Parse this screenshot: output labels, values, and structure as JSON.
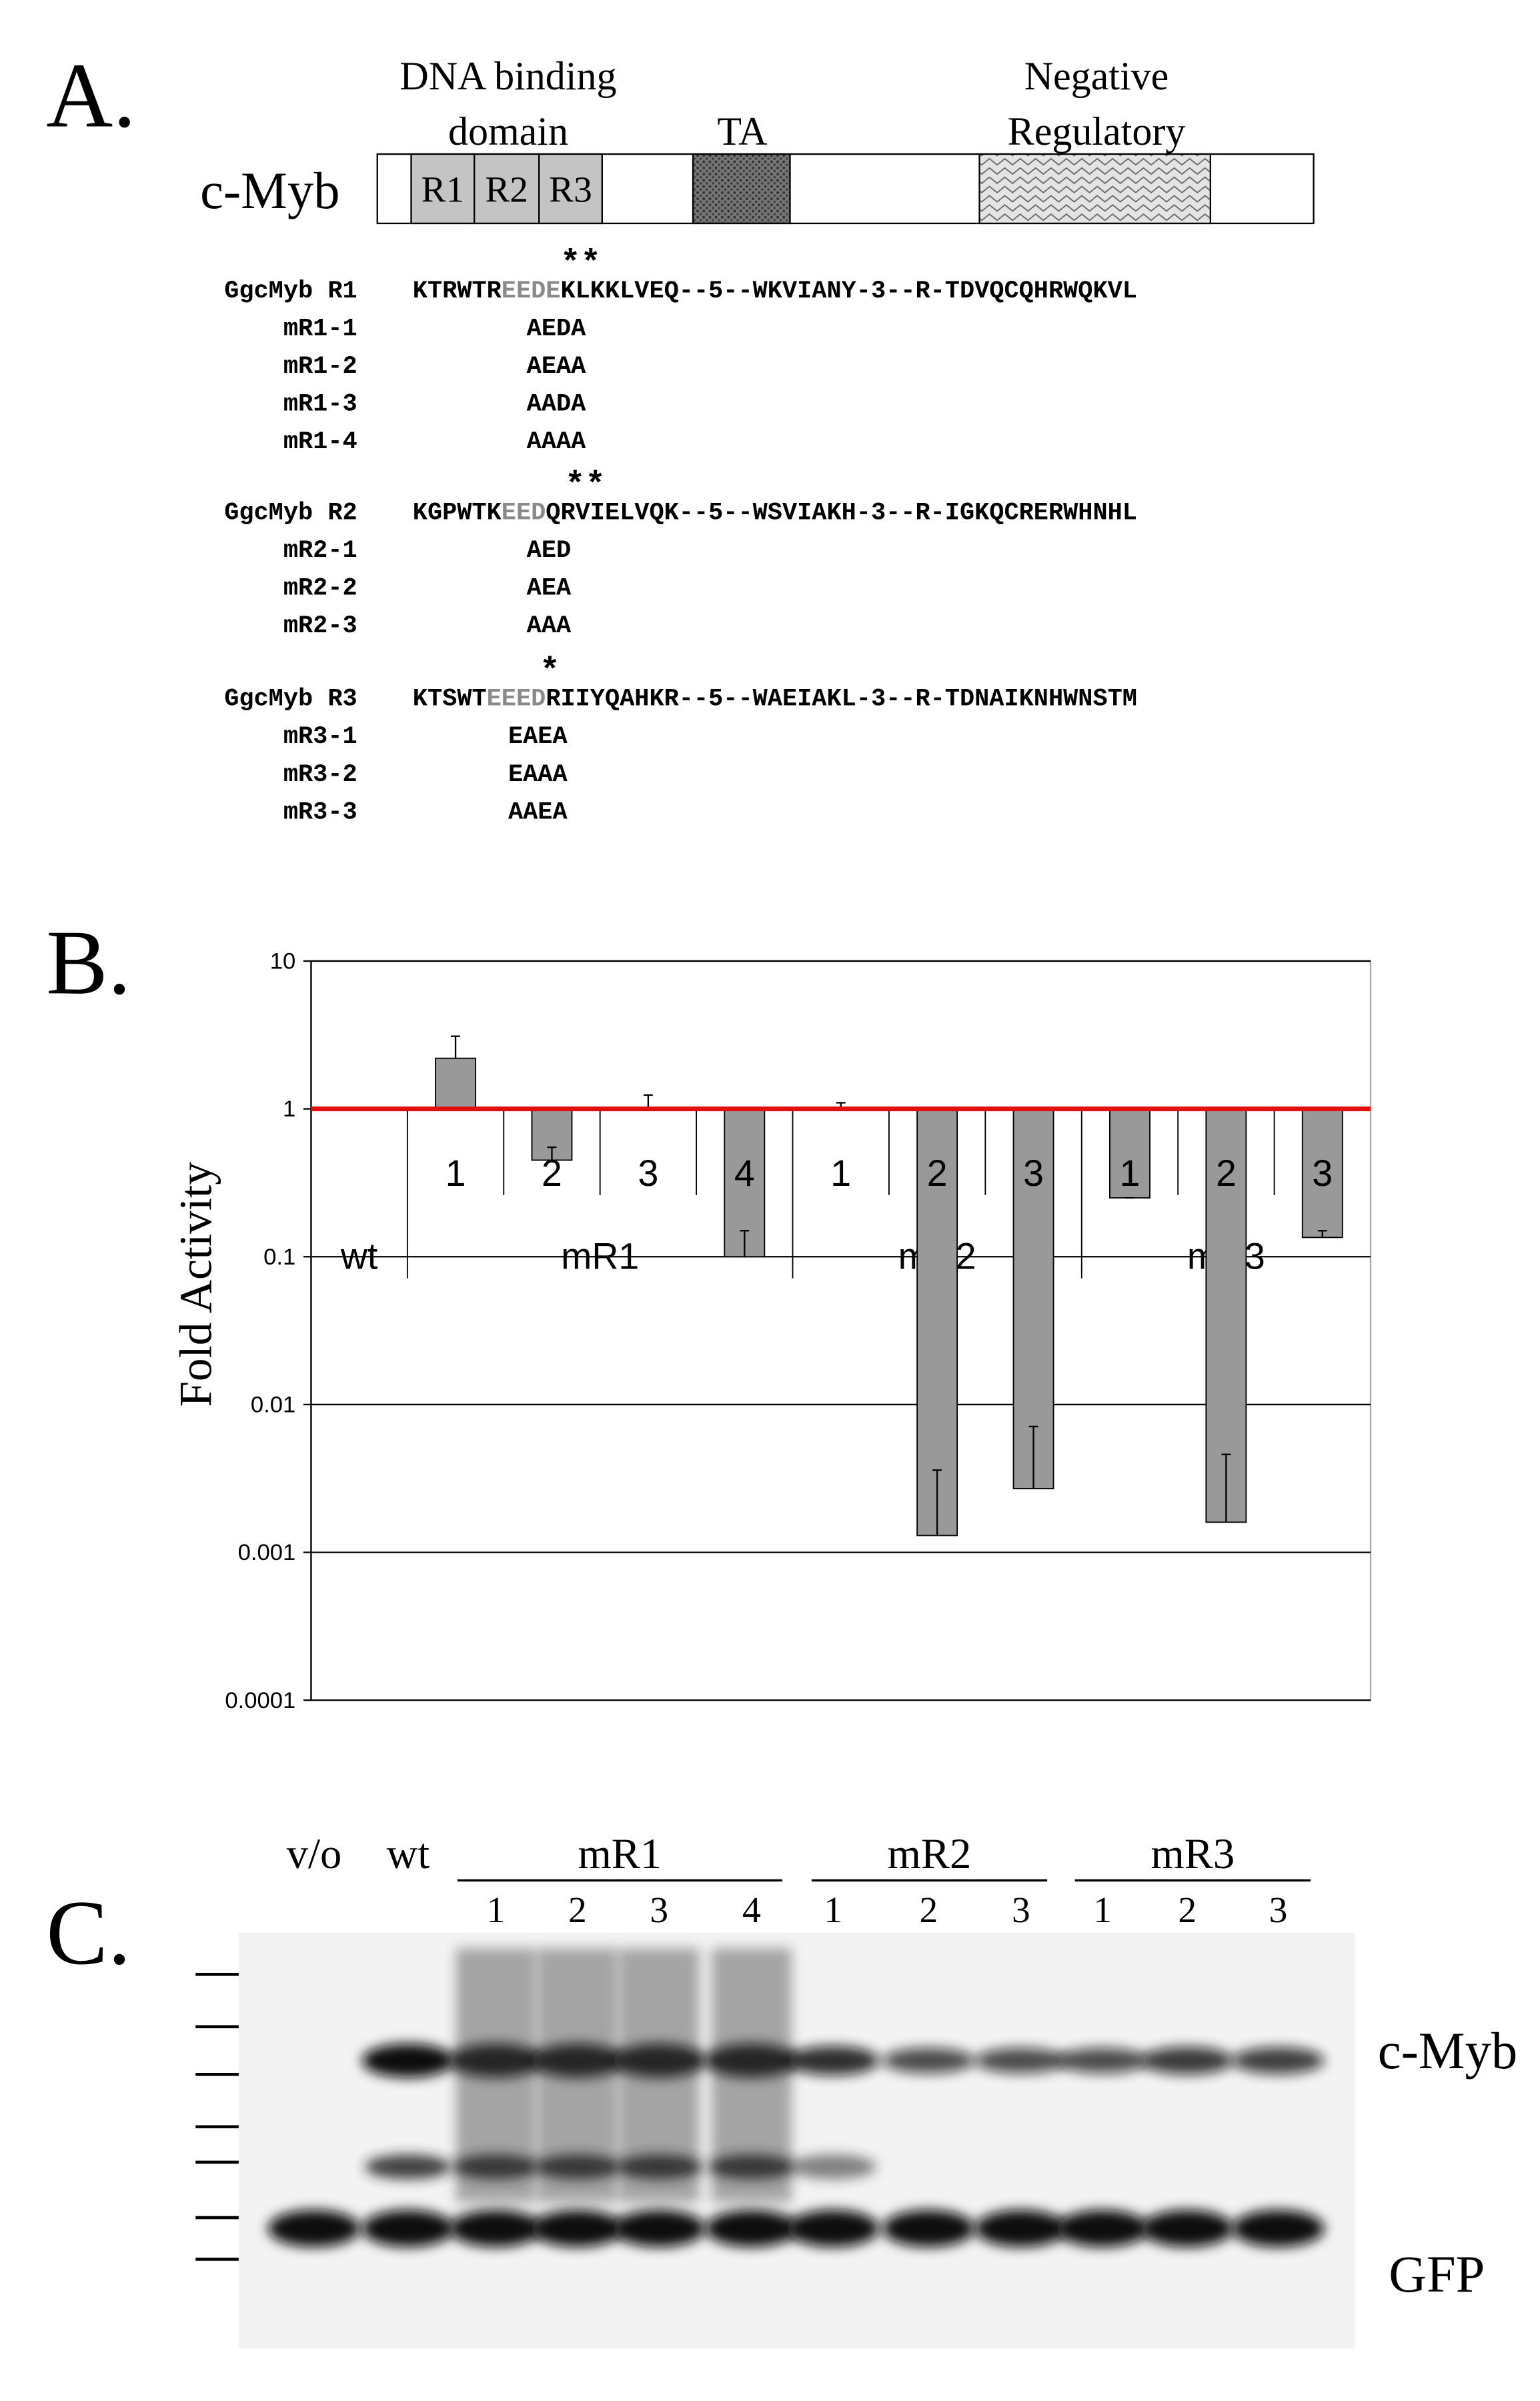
{
  "panel_a": {
    "label": "A.",
    "domain_title": [
      "DNA binding",
      "domain"
    ],
    "ta": "TA",
    "negative": [
      "Negative",
      "Regulatory"
    ],
    "protein": "c-Myb",
    "repeats": [
      "R1",
      "R2",
      "R3"
    ],
    "blocks": [
      {
        "name": "GgcMyb R1",
        "stars": "**",
        "seq": [
          "KTRWTR",
          "EEDE",
          "KLKKLVEQ--5--WKVIANY-3--R-TDVQCQHRWQKVL"
        ],
        "mutants": [
          {
            "name": "mR1-1",
            "seq": "AEDA"
          },
          {
            "name": "mR1-2",
            "seq": "AEAA"
          },
          {
            "name": "mR1-3",
            "seq": "AADA"
          },
          {
            "name": "mR1-4",
            "seq": "AAAA"
          }
        ]
      },
      {
        "name": "GgcMyb R2",
        "stars": "**",
        "seq": [
          "KGPWTK",
          "EED",
          "QRVIELVQK--5--WSVIAKH-3--R-IGKQCRERWHNHL"
        ],
        "mutants": [
          {
            "name": "mR2-1",
            "seq": "AED"
          },
          {
            "name": "mR2-2",
            "seq": "AEA"
          },
          {
            "name": "mR2-3",
            "seq": "AAA"
          }
        ]
      },
      {
        "name": "GgcMyb R3",
        "stars": "*",
        "seq": [
          "KTSWT",
          "EEED",
          "RIIYQAHKR--5--WAEIAKL-3--R-TDNAIKNHWNSTM"
        ],
        "mutants": [
          {
            "name": "mR3-1",
            "seq": "EAEA"
          },
          {
            "name": "mR3-2",
            "seq": "EAAA"
          },
          {
            "name": "mR3-3",
            "seq": "AAEA"
          }
        ]
      }
    ]
  },
  "chart_data": {
    "type": "bar",
    "label": "B.",
    "y_label": "Fold Activity",
    "log_scale": true,
    "ylim": [
      0.0001,
      10
    ],
    "yticks": [
      10,
      1,
      0.1,
      0.01,
      0.001,
      0.0001
    ],
    "grid": true,
    "reference_line": 1,
    "reference_color": "#e01010",
    "color": "#999999",
    "groups": [
      {
        "name": "wt",
        "categories": [],
        "values": [],
        "errors": []
      },
      {
        "name": "mR1",
        "categories": [
          "1",
          "2",
          "3",
          "4"
        ],
        "values": [
          2.2,
          0.45,
          1.0,
          0.1
        ],
        "errors": [
          0.9,
          0.1,
          0.24,
          0.05
        ]
      },
      {
        "name": "mR2",
        "categories": [
          "1",
          "2",
          "3"
        ],
        "values": [
          1.0,
          0.0013,
          0.0027
        ],
        "errors": [
          0.1,
          0.0023,
          0.0044
        ]
      },
      {
        "name": "mR3",
        "categories": [
          "1",
          "2",
          "3"
        ],
        "values": [
          0.25,
          0.0016,
          0.135
        ],
        "errors": [
          0,
          0.003,
          0.015
        ]
      }
    ]
  },
  "panel_c": {
    "label": "C.",
    "single_lanes": [
      "v/o",
      "wt"
    ],
    "groups": [
      {
        "name": "mR1",
        "lanes": [
          "1",
          "2",
          "3",
          "4"
        ]
      },
      {
        "name": "mR2",
        "lanes": [
          "1",
          "2",
          "3"
        ]
      },
      {
        "name": "mR3",
        "lanes": [
          "1",
          "2",
          "3"
        ]
      }
    ],
    "bands": [
      "c-Myb",
      "GFP"
    ]
  }
}
